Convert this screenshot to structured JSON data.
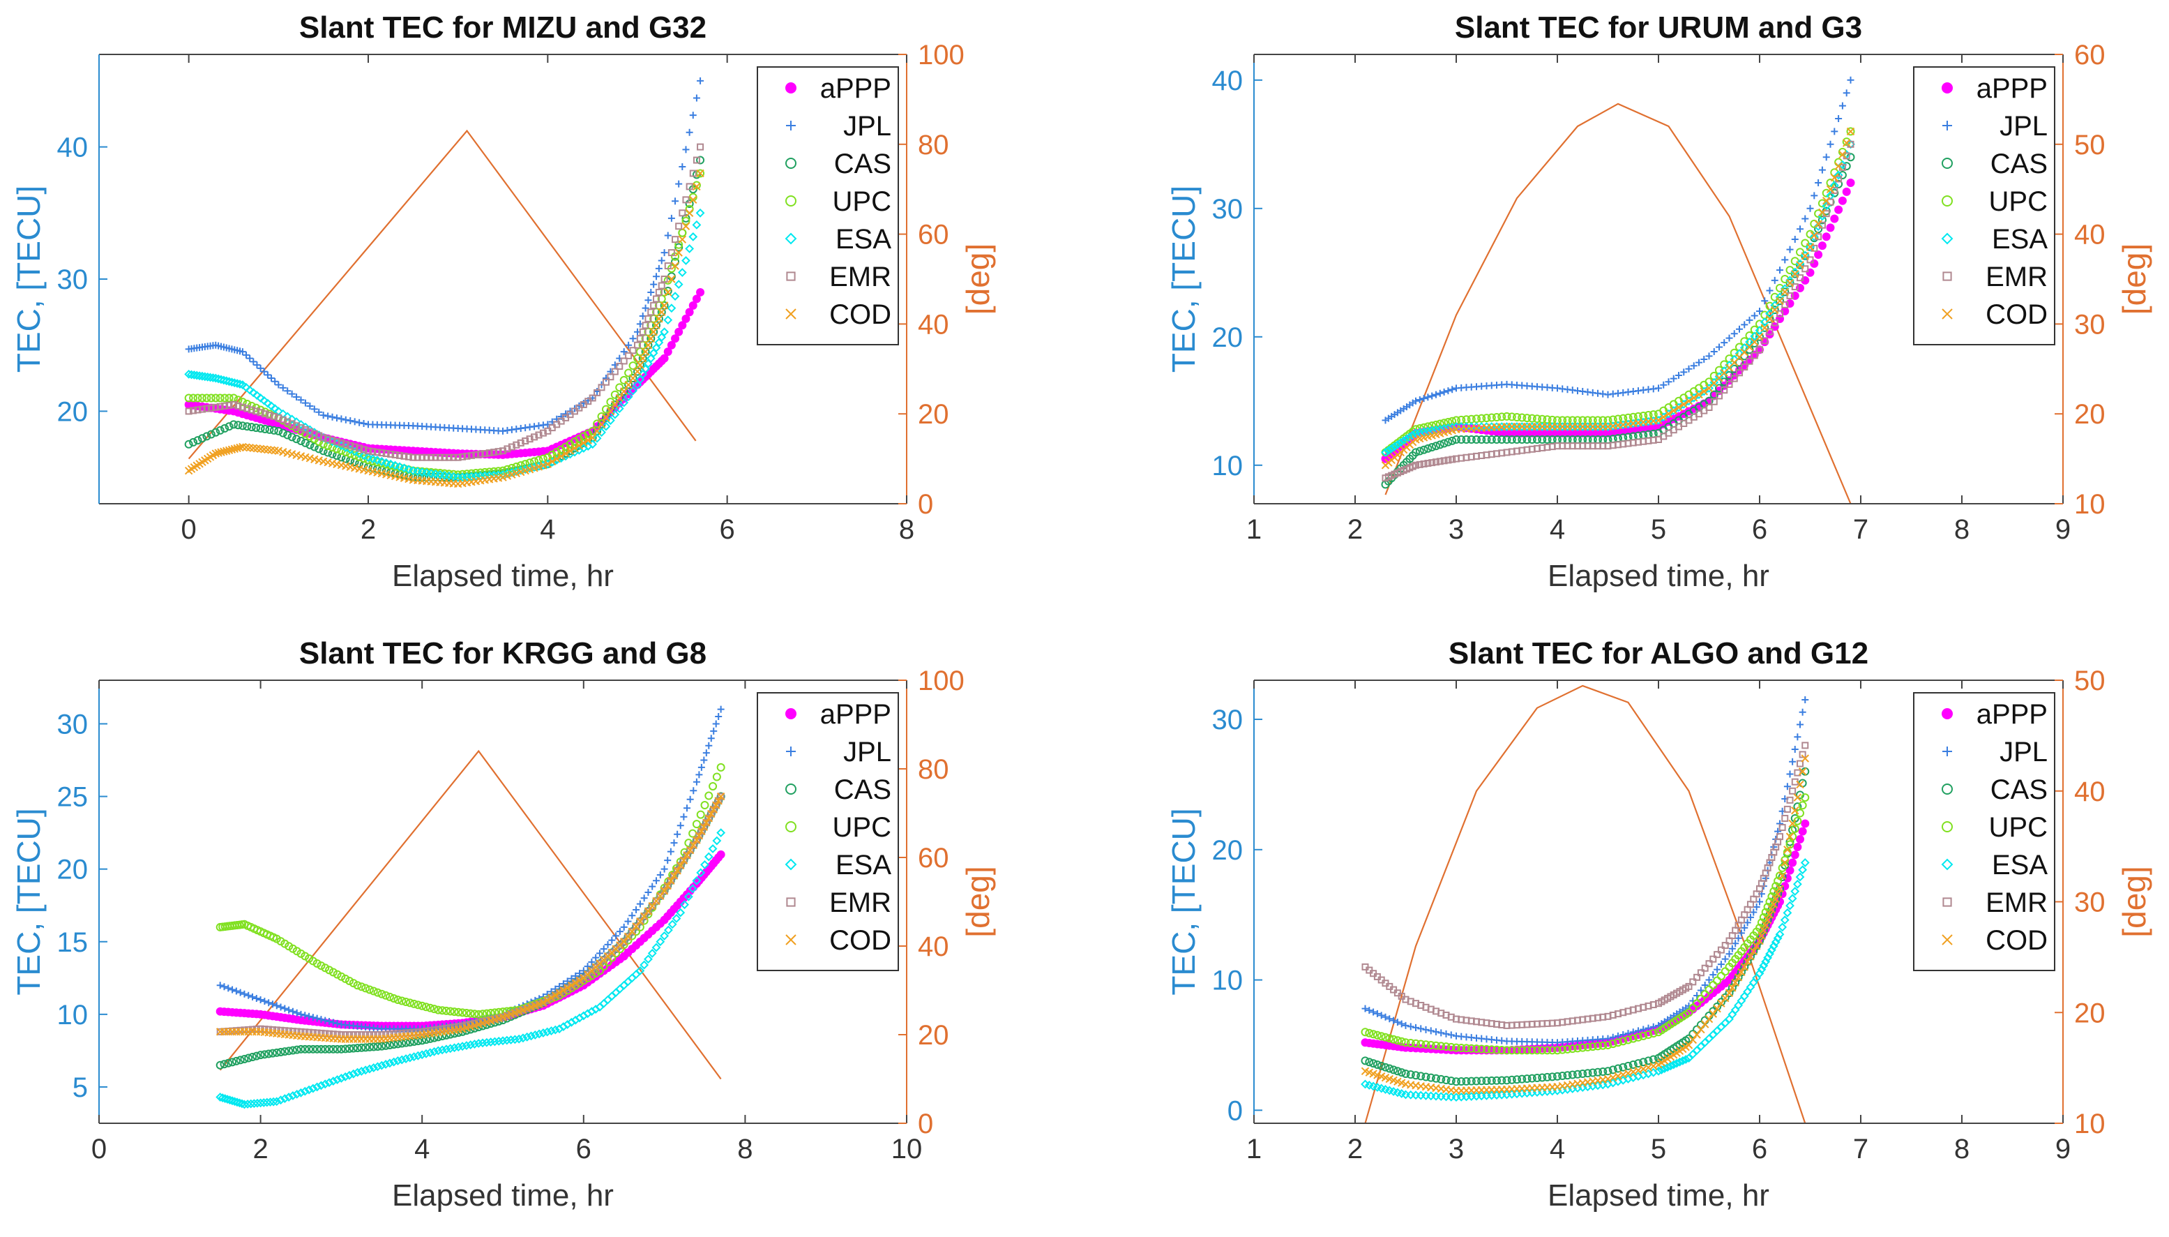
{
  "chart_data": [
    {
      "type": "scatter",
      "title": "Slant TEC for MIZU and G32",
      "xlabel": "Elapsed time, hr",
      "ylabel": "TEC, [TECU]",
      "ylabel_right": "[deg]",
      "xlim": [
        -1,
        8
      ],
      "ylim": [
        13,
        47
      ],
      "ylim_right": [
        0,
        100
      ],
      "xticks": [
        0,
        2,
        4,
        6,
        8
      ],
      "yticks": [
        20,
        30,
        40
      ],
      "yticks_right": [
        0,
        20,
        40,
        60,
        80,
        100
      ],
      "legend_position": "top-right",
      "series": [
        {
          "name": "aPPP",
          "color": "#ff00ff",
          "marker": "dot",
          "x": [
            0,
            0.5,
            1,
            1.5,
            2,
            2.5,
            3,
            3.5,
            4,
            4.5,
            5,
            5.3,
            5.7
          ],
          "y": [
            20.5,
            20,
            19,
            18,
            17.2,
            17,
            16.8,
            16.7,
            17,
            18.5,
            22,
            24,
            29
          ]
        },
        {
          "name": "JPL",
          "color": "#3a7ee0",
          "marker": "plus",
          "x": [
            0,
            0.3,
            0.6,
            1,
            1.5,
            2,
            2.5,
            3,
            3.5,
            4,
            4.5,
            5,
            5.3,
            5.7
          ],
          "y": [
            24.7,
            25,
            24.5,
            22,
            19.7,
            19,
            18.9,
            18.7,
            18.5,
            19,
            21,
            26,
            32,
            45
          ]
        },
        {
          "name": "CAS",
          "color": "#20a060",
          "marker": "circle",
          "x": [
            0,
            0.5,
            1,
            1.5,
            2,
            2.5,
            3,
            3.5,
            4,
            4.5,
            5,
            5.3,
            5.7
          ],
          "y": [
            17.5,
            19,
            18.5,
            17,
            15.8,
            15,
            15,
            15.3,
            16,
            18,
            23,
            28,
            39
          ]
        },
        {
          "name": "UPC",
          "color": "#80e020",
          "marker": "circle",
          "x": [
            0,
            0.5,
            1,
            1.5,
            2,
            2.5,
            3,
            3.5,
            4,
            4.5,
            5,
            5.3,
            5.7
          ],
          "y": [
            21,
            21,
            19.5,
            17.5,
            16.3,
            15.5,
            15.2,
            15.5,
            16.5,
            18.5,
            24,
            29,
            38
          ]
        },
        {
          "name": "ESA",
          "color": "#00e8f0",
          "marker": "diamond",
          "x": [
            0,
            0.3,
            0.6,
            1,
            1.5,
            2,
            2.5,
            3,
            3.5,
            4,
            4.5,
            5,
            5.3,
            5.7
          ],
          "y": [
            22.8,
            22.5,
            22,
            20,
            18,
            16.5,
            15.5,
            15,
            15.2,
            16,
            17.5,
            22,
            26,
            35
          ]
        },
        {
          "name": "EMR",
          "color": "#b08890",
          "marker": "square",
          "x": [
            0,
            0.5,
            1,
            1.5,
            2,
            2.5,
            3,
            3.5,
            4,
            4.5,
            5,
            5.3,
            5.7
          ],
          "y": [
            20,
            20.5,
            19.5,
            18,
            17,
            16.5,
            16.5,
            17,
            18.5,
            21,
            25,
            30,
            40
          ]
        },
        {
          "name": "COD",
          "color": "#f0a020",
          "marker": "cross",
          "x": [
            0,
            0.3,
            0.6,
            1,
            1.5,
            2,
            2.5,
            3,
            3.5,
            4,
            4.5,
            5,
            5.3,
            5.7
          ],
          "y": [
            15.5,
            16.8,
            17.3,
            17,
            16.2,
            15.5,
            14.8,
            14.5,
            15,
            16,
            18,
            23,
            28,
            38
          ]
        }
      ],
      "elevation": {
        "x": [
          0,
          3.1,
          5.65
        ],
        "y": [
          10,
          83,
          14
        ]
      }
    },
    {
      "type": "scatter",
      "title": "Slant TEC for URUM and G3",
      "xlabel": "Elapsed time, hr",
      "ylabel": "TEC, [TECU]",
      "ylabel_right": "[deg]",
      "xlim": [
        1,
        9
      ],
      "ylim": [
        7,
        42
      ],
      "ylim_right": [
        10,
        60
      ],
      "xticks": [
        1,
        2,
        3,
        4,
        5,
        6,
        7,
        8,
        9
      ],
      "yticks": [
        10,
        20,
        30,
        40
      ],
      "yticks_right": [
        10,
        20,
        30,
        40,
        50,
        60
      ],
      "legend_position": "top-right",
      "series": [
        {
          "name": "aPPP",
          "color": "#ff00ff",
          "marker": "dot",
          "x": [
            2.3,
            2.6,
            3,
            3.5,
            4,
            4.5,
            5,
            5.5,
            6,
            6.5,
            6.9
          ],
          "y": [
            10.5,
            12.5,
            13,
            12.5,
            12.5,
            12.5,
            13,
            15,
            19,
            25,
            32
          ]
        },
        {
          "name": "JPL",
          "color": "#3a7ee0",
          "marker": "plus",
          "x": [
            2.3,
            2.6,
            3,
            3.5,
            4,
            4.5,
            5,
            5.5,
            6,
            6.5,
            6.9
          ],
          "y": [
            13.5,
            15,
            16,
            16.3,
            16,
            15.5,
            16,
            18.5,
            22,
            30,
            40
          ]
        },
        {
          "name": "CAS",
          "color": "#20a060",
          "marker": "circle",
          "x": [
            2.3,
            2.6,
            3,
            3.5,
            4,
            4.5,
            5,
            5.5,
            6,
            6.5,
            6.9
          ],
          "y": [
            8.5,
            11,
            12,
            12,
            12,
            12,
            12.5,
            15,
            20,
            27,
            34
          ]
        },
        {
          "name": "UPC",
          "color": "#80e020",
          "marker": "circle",
          "x": [
            2.3,
            2.6,
            3,
            3.5,
            4,
            4.5,
            5,
            5.5,
            6,
            6.5,
            6.9
          ],
          "y": [
            11,
            12.8,
            13.5,
            13.8,
            13.5,
            13.5,
            14,
            16.5,
            21,
            28,
            36
          ]
        },
        {
          "name": "ESA",
          "color": "#00e8f0",
          "marker": "diamond",
          "x": [
            2.3,
            2.6,
            3,
            3.5,
            4,
            4.5,
            5,
            5.5,
            6,
            6.5,
            6.9
          ],
          "y": [
            11,
            12.5,
            13,
            13,
            13,
            13,
            13.5,
            16,
            20.5,
            27,
            35
          ]
        },
        {
          "name": "EMR",
          "color": "#b08890",
          "marker": "square",
          "x": [
            2.3,
            2.6,
            3,
            3.5,
            4,
            4.5,
            5,
            5.5,
            6,
            6.5,
            6.9
          ],
          "y": [
            9,
            10,
            10.5,
            11,
            11.5,
            11.5,
            12,
            14.5,
            19,
            26,
            35
          ]
        },
        {
          "name": "COD",
          "color": "#f0a020",
          "marker": "cross",
          "x": [
            2.3,
            2.6,
            3,
            3.5,
            4,
            4.5,
            5,
            5.5,
            6,
            6.5,
            6.9
          ],
          "y": [
            10,
            12,
            12.8,
            13,
            13,
            13,
            13.5,
            16,
            20,
            27,
            36
          ]
        }
      ],
      "elevation": {
        "x": [
          2.3,
          3,
          3.6,
          4.2,
          4.6,
          5.1,
          5.7,
          6.3,
          6.9
        ],
        "y": [
          11,
          31,
          44,
          52,
          54.5,
          52,
          42,
          26,
          10
        ]
      }
    },
    {
      "type": "scatter",
      "title": "Slant TEC for KRGG and G8",
      "xlabel": "Elapsed time, hr",
      "ylabel": "TEC, [TECU]",
      "ylabel_right": "[deg]",
      "xlim": [
        0,
        10
      ],
      "ylim": [
        2.5,
        33
      ],
      "ylim_right": [
        0,
        100
      ],
      "xticks": [
        0,
        2,
        4,
        6,
        8,
        10
      ],
      "yticks": [
        5,
        10,
        15,
        20,
        25,
        30
      ],
      "yticks_right": [
        0,
        20,
        40,
        60,
        80,
        100
      ],
      "legend_position": "top-right",
      "series": [
        {
          "name": "aPPP",
          "color": "#ff00ff",
          "marker": "dot",
          "x": [
            1.5,
            2,
            2.5,
            3,
            3.5,
            4,
            4.5,
            5,
            5.5,
            6,
            6.5,
            7,
            7.4,
            7.7
          ],
          "y": [
            10.2,
            10,
            9.6,
            9.3,
            9.2,
            9.2,
            9.4,
            9.8,
            10.6,
            12,
            14,
            16.5,
            19,
            21
          ]
        },
        {
          "name": "JPL",
          "color": "#3a7ee0",
          "marker": "plus",
          "x": [
            1.5,
            2,
            2.5,
            3,
            3.5,
            4,
            4.5,
            5,
            5.5,
            6,
            6.5,
            7,
            7.4,
            7.7
          ],
          "y": [
            12,
            11,
            10,
            9.3,
            9,
            9,
            9.3,
            10,
            11.2,
            13,
            16,
            20,
            26,
            31
          ]
        },
        {
          "name": "CAS",
          "color": "#20a060",
          "marker": "circle",
          "x": [
            1.5,
            2,
            2.5,
            3,
            3.5,
            4,
            4.5,
            5,
            5.5,
            6,
            6.5,
            7,
            7.4,
            7.7
          ],
          "y": [
            6.5,
            7.2,
            7.6,
            7.6,
            7.8,
            8.2,
            8.8,
            9.6,
            10.8,
            12.5,
            15,
            18.5,
            22,
            25
          ]
        },
        {
          "name": "UPC",
          "color": "#80e020",
          "marker": "circle",
          "x": [
            1.5,
            1.8,
            2.2,
            2.7,
            3.2,
            3.7,
            4.2,
            4.7,
            5.2,
            5.7,
            6.2,
            6.7,
            7.2,
            7.7
          ],
          "y": [
            16,
            16.2,
            15.2,
            13.5,
            12,
            11,
            10.3,
            10,
            10.3,
            11.3,
            13,
            16,
            20.5,
            27
          ]
        },
        {
          "name": "ESA",
          "color": "#00e8f0",
          "marker": "diamond",
          "x": [
            1.5,
            1.8,
            2.2,
            2.7,
            3.2,
            3.7,
            4.2,
            4.7,
            5.2,
            5.7,
            6.2,
            6.7,
            7.2,
            7.7
          ],
          "y": [
            4.3,
            3.8,
            4,
            5,
            6,
            6.8,
            7.5,
            8,
            8.3,
            9,
            10.5,
            13,
            17,
            22.5
          ]
        },
        {
          "name": "EMR",
          "color": "#b08890",
          "marker": "square",
          "x": [
            1.5,
            2,
            2.5,
            3,
            3.5,
            4,
            4.5,
            5,
            5.5,
            6,
            6.5,
            7,
            7.4,
            7.7
          ],
          "y": [
            8.8,
            9,
            8.8,
            8.6,
            8.6,
            8.8,
            9.2,
            9.8,
            10.8,
            12.5,
            15,
            18.5,
            22,
            25
          ]
        },
        {
          "name": "COD",
          "color": "#f0a020",
          "marker": "cross",
          "x": [
            1.5,
            2,
            2.5,
            3,
            3.5,
            4,
            4.5,
            5,
            5.5,
            6,
            6.5,
            7,
            7.4,
            7.7
          ],
          "y": [
            8.8,
            8.8,
            8.5,
            8.3,
            8.3,
            8.6,
            9,
            9.8,
            10.8,
            12.5,
            15,
            18.5,
            22,
            25
          ]
        }
      ],
      "elevation": {
        "x": [
          1.5,
          4.7,
          7.7
        ],
        "y": [
          12,
          84,
          10
        ]
      }
    },
    {
      "type": "scatter",
      "title": "Slant TEC for ALGO and G12",
      "xlabel": "Elapsed time, hr",
      "ylabel": "TEC, [TECU]",
      "ylabel_right": "[deg]",
      "xlim": [
        1,
        9
      ],
      "ylim": [
        -1,
        33
      ],
      "ylim_right": [
        10,
        50
      ],
      "xticks": [
        1,
        2,
        3,
        4,
        5,
        6,
        7,
        8,
        9
      ],
      "yticks": [
        0,
        10,
        20,
        30
      ],
      "yticks_right": [
        10,
        20,
        30,
        40,
        50
      ],
      "legend_position": "top-right",
      "series": [
        {
          "name": "aPPP",
          "color": "#ff00ff",
          "marker": "dot",
          "x": [
            2.1,
            2.5,
            3,
            3.5,
            4,
            4.5,
            5,
            5.3,
            5.7,
            6,
            6.2,
            6.45
          ],
          "y": [
            5.2,
            4.8,
            4.6,
            4.6,
            4.8,
            5.2,
            6.2,
            7.5,
            10,
            13,
            16,
            22
          ]
        },
        {
          "name": "JPL",
          "color": "#3a7ee0",
          "marker": "plus",
          "x": [
            2.1,
            2.5,
            3,
            3.5,
            4,
            4.5,
            5,
            5.3,
            5.7,
            6,
            6.2,
            6.45
          ],
          "y": [
            7.8,
            6.5,
            5.7,
            5.3,
            5.2,
            5.5,
            6.5,
            8,
            12,
            16,
            22,
            31.5
          ]
        },
        {
          "name": "CAS",
          "color": "#20a060",
          "marker": "circle",
          "x": [
            2.1,
            2.5,
            3,
            3.5,
            4,
            4.5,
            5,
            5.3,
            5.7,
            6,
            6.2,
            6.45
          ],
          "y": [
            3.8,
            2.8,
            2.2,
            2.3,
            2.6,
            3,
            4,
            5.5,
            9,
            13,
            17,
            26
          ]
        },
        {
          "name": "UPC",
          "color": "#80e020",
          "marker": "circle",
          "x": [
            2.1,
            2.5,
            3,
            3.5,
            4,
            4.5,
            5,
            5.3,
            5.7,
            6,
            6.2,
            6.45
          ],
          "y": [
            6,
            5.2,
            4.8,
            4.6,
            4.6,
            5,
            6,
            7.5,
            11,
            14,
            18,
            24
          ]
        },
        {
          "name": "ESA",
          "color": "#00e8f0",
          "marker": "diamond",
          "x": [
            2.1,
            2.5,
            3,
            3.5,
            4,
            4.5,
            5,
            5.3,
            5.7,
            6,
            6.2,
            6.45
          ],
          "y": [
            2,
            1.2,
            1,
            1.2,
            1.5,
            2,
            3,
            4,
            7,
            10.5,
            13.5,
            19
          ]
        },
        {
          "name": "EMR",
          "color": "#b08890",
          "marker": "square",
          "x": [
            2.1,
            2.5,
            3,
            3.5,
            4,
            4.5,
            5,
            5.3,
            5.7,
            6,
            6.2,
            6.45
          ],
          "y": [
            11,
            8.5,
            7,
            6.5,
            6.7,
            7.2,
            8.2,
            9.5,
            13,
            17,
            21,
            28
          ]
        },
        {
          "name": "COD",
          "color": "#f0a020",
          "marker": "cross",
          "x": [
            2.1,
            2.5,
            3,
            3.5,
            4,
            4.5,
            5,
            5.3,
            5.7,
            6,
            6.2,
            6.45
          ],
          "y": [
            3,
            2,
            1.5,
            1.6,
            1.8,
            2.4,
            3.5,
            5,
            9,
            13,
            17,
            27
          ]
        }
      ],
      "elevation": {
        "x": [
          2.1,
          2.6,
          3.2,
          3.8,
          4.25,
          4.7,
          5.3,
          5.9,
          6.45
        ],
        "y": [
          10,
          26,
          40,
          47.5,
          49.5,
          48,
          40,
          25,
          10
        ]
      }
    }
  ]
}
